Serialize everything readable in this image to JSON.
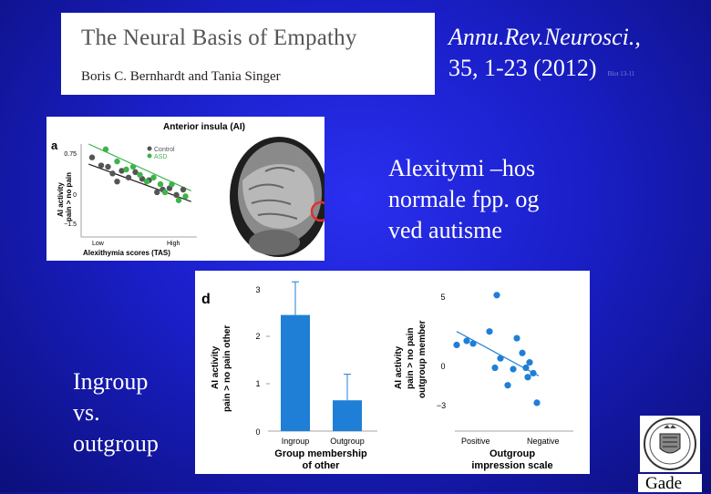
{
  "header": {
    "paper_title": "The Neural Basis of Empathy",
    "paper_authors": "Boris C. Bernhardt and Tania Singer",
    "journal_line1": "Annu.Rev.Neurosci.,",
    "journal_line2": "35, 1-23 (2012)",
    "tiny_note": "Blot 13-11"
  },
  "captions": {
    "alex_line1": "Alexitymi –hos",
    "alex_line2": "normale fpp. og",
    "alex_line3": "ved autisme",
    "ingroup_line1": "Ingroup",
    "ingroup_line2": "vs.",
    "ingroup_line3": "outgroup",
    "author_tag": "Gade"
  },
  "colors": {
    "control": "#555555",
    "asd": "#3cb44b",
    "bar": "#1f7fd6",
    "scatter": "#1f7fd6",
    "ring": "#e03030"
  },
  "chart_data": [
    {
      "type": "scatter",
      "panel_label": "a",
      "title": "Anterior insula (AI)",
      "xlabel": "Alexithymia scores (TAS)",
      "ylabel": [
        "AI activity",
        "pain > no pain"
      ],
      "x_tick_labels": [
        "Low",
        "High"
      ],
      "y_tick_labels": [
        "0.75",
        "0",
        "−1.5"
      ],
      "xlim": [
        0,
        10
      ],
      "ylim": [
        -2.2,
        1.2
      ],
      "grid": false,
      "legend_position": "top-right",
      "series": [
        {
          "name": "Control",
          "points": [
            [
              0.8,
              0.7
            ],
            [
              1.6,
              0.4
            ],
            [
              2.2,
              0.35
            ],
            [
              2.6,
              0.1
            ],
            [
              3.4,
              0.2
            ],
            [
              4.0,
              -0.05
            ],
            [
              4.6,
              0.15
            ],
            [
              5.2,
              -0.1
            ],
            [
              5.8,
              -0.15
            ],
            [
              6.5,
              -0.6
            ],
            [
              7.0,
              -0.5
            ],
            [
              7.6,
              -0.45
            ],
            [
              8.2,
              -0.7
            ],
            [
              8.8,
              -0.5
            ],
            [
              3.0,
              -0.2
            ]
          ]
        },
        {
          "name": "ASD",
          "points": [
            [
              2.0,
              1.0
            ],
            [
              3.0,
              0.55
            ],
            [
              3.8,
              0.25
            ],
            [
              4.4,
              0.35
            ],
            [
              5.0,
              0.05
            ],
            [
              5.6,
              -0.2
            ],
            [
              6.2,
              -0.05
            ],
            [
              6.8,
              -0.3
            ],
            [
              7.2,
              -0.6
            ],
            [
              7.8,
              -0.3
            ],
            [
              8.4,
              -0.9
            ],
            [
              9.0,
              -0.75
            ]
          ]
        }
      ],
      "fit_lines": [
        {
          "series": "Control",
          "from": [
            0.5,
            0.45
          ],
          "to": [
            9.5,
            -0.95
          ]
        },
        {
          "series": "ASD",
          "from": [
            0.5,
            1.2
          ],
          "to": [
            9.5,
            -0.55
          ]
        }
      ]
    },
    {
      "type": "bar",
      "panel_label": "d",
      "xlabel": [
        "Group membership",
        "of other"
      ],
      "ylabel": [
        "AI activity",
        "pain > no pain other"
      ],
      "categories": [
        "Ingroup",
        "Outgroup"
      ],
      "values": [
        2.45,
        0.65
      ],
      "errors": [
        0.7,
        0.55
      ],
      "ylim": [
        0,
        3
      ],
      "y_tick_labels": [
        "0",
        "1",
        "2",
        "3"
      ]
    },
    {
      "type": "scatter",
      "xlabel": [
        "Outgroup",
        "impression scale"
      ],
      "ylabel": [
        "AI activity",
        "pain > no pain",
        "outgroup member"
      ],
      "x_tick_labels": [
        "Positive",
        "Negative"
      ],
      "y_tick_labels": [
        "5",
        "0",
        "−3"
      ],
      "xlim": [
        0,
        10
      ],
      "ylim": [
        -4.5,
        6
      ],
      "points": [
        [
          0.2,
          1.5
        ],
        [
          1.3,
          1.8
        ],
        [
          2.0,
          1.6
        ],
        [
          3.8,
          2.5
        ],
        [
          4.6,
          5.2
        ],
        [
          5.0,
          0.5
        ],
        [
          4.4,
          -0.2
        ],
        [
          5.8,
          -1.5
        ],
        [
          6.4,
          -0.3
        ],
        [
          6.8,
          2.0
        ],
        [
          7.4,
          0.9
        ],
        [
          7.8,
          -0.2
        ],
        [
          8.2,
          0.2
        ],
        [
          8.6,
          -0.6
        ],
        [
          8.0,
          -0.9
        ],
        [
          9.0,
          -2.8
        ]
      ],
      "fit_line": {
        "from": [
          0.2,
          2.5
        ],
        "to": [
          9.2,
          -0.8
        ]
      }
    }
  ]
}
